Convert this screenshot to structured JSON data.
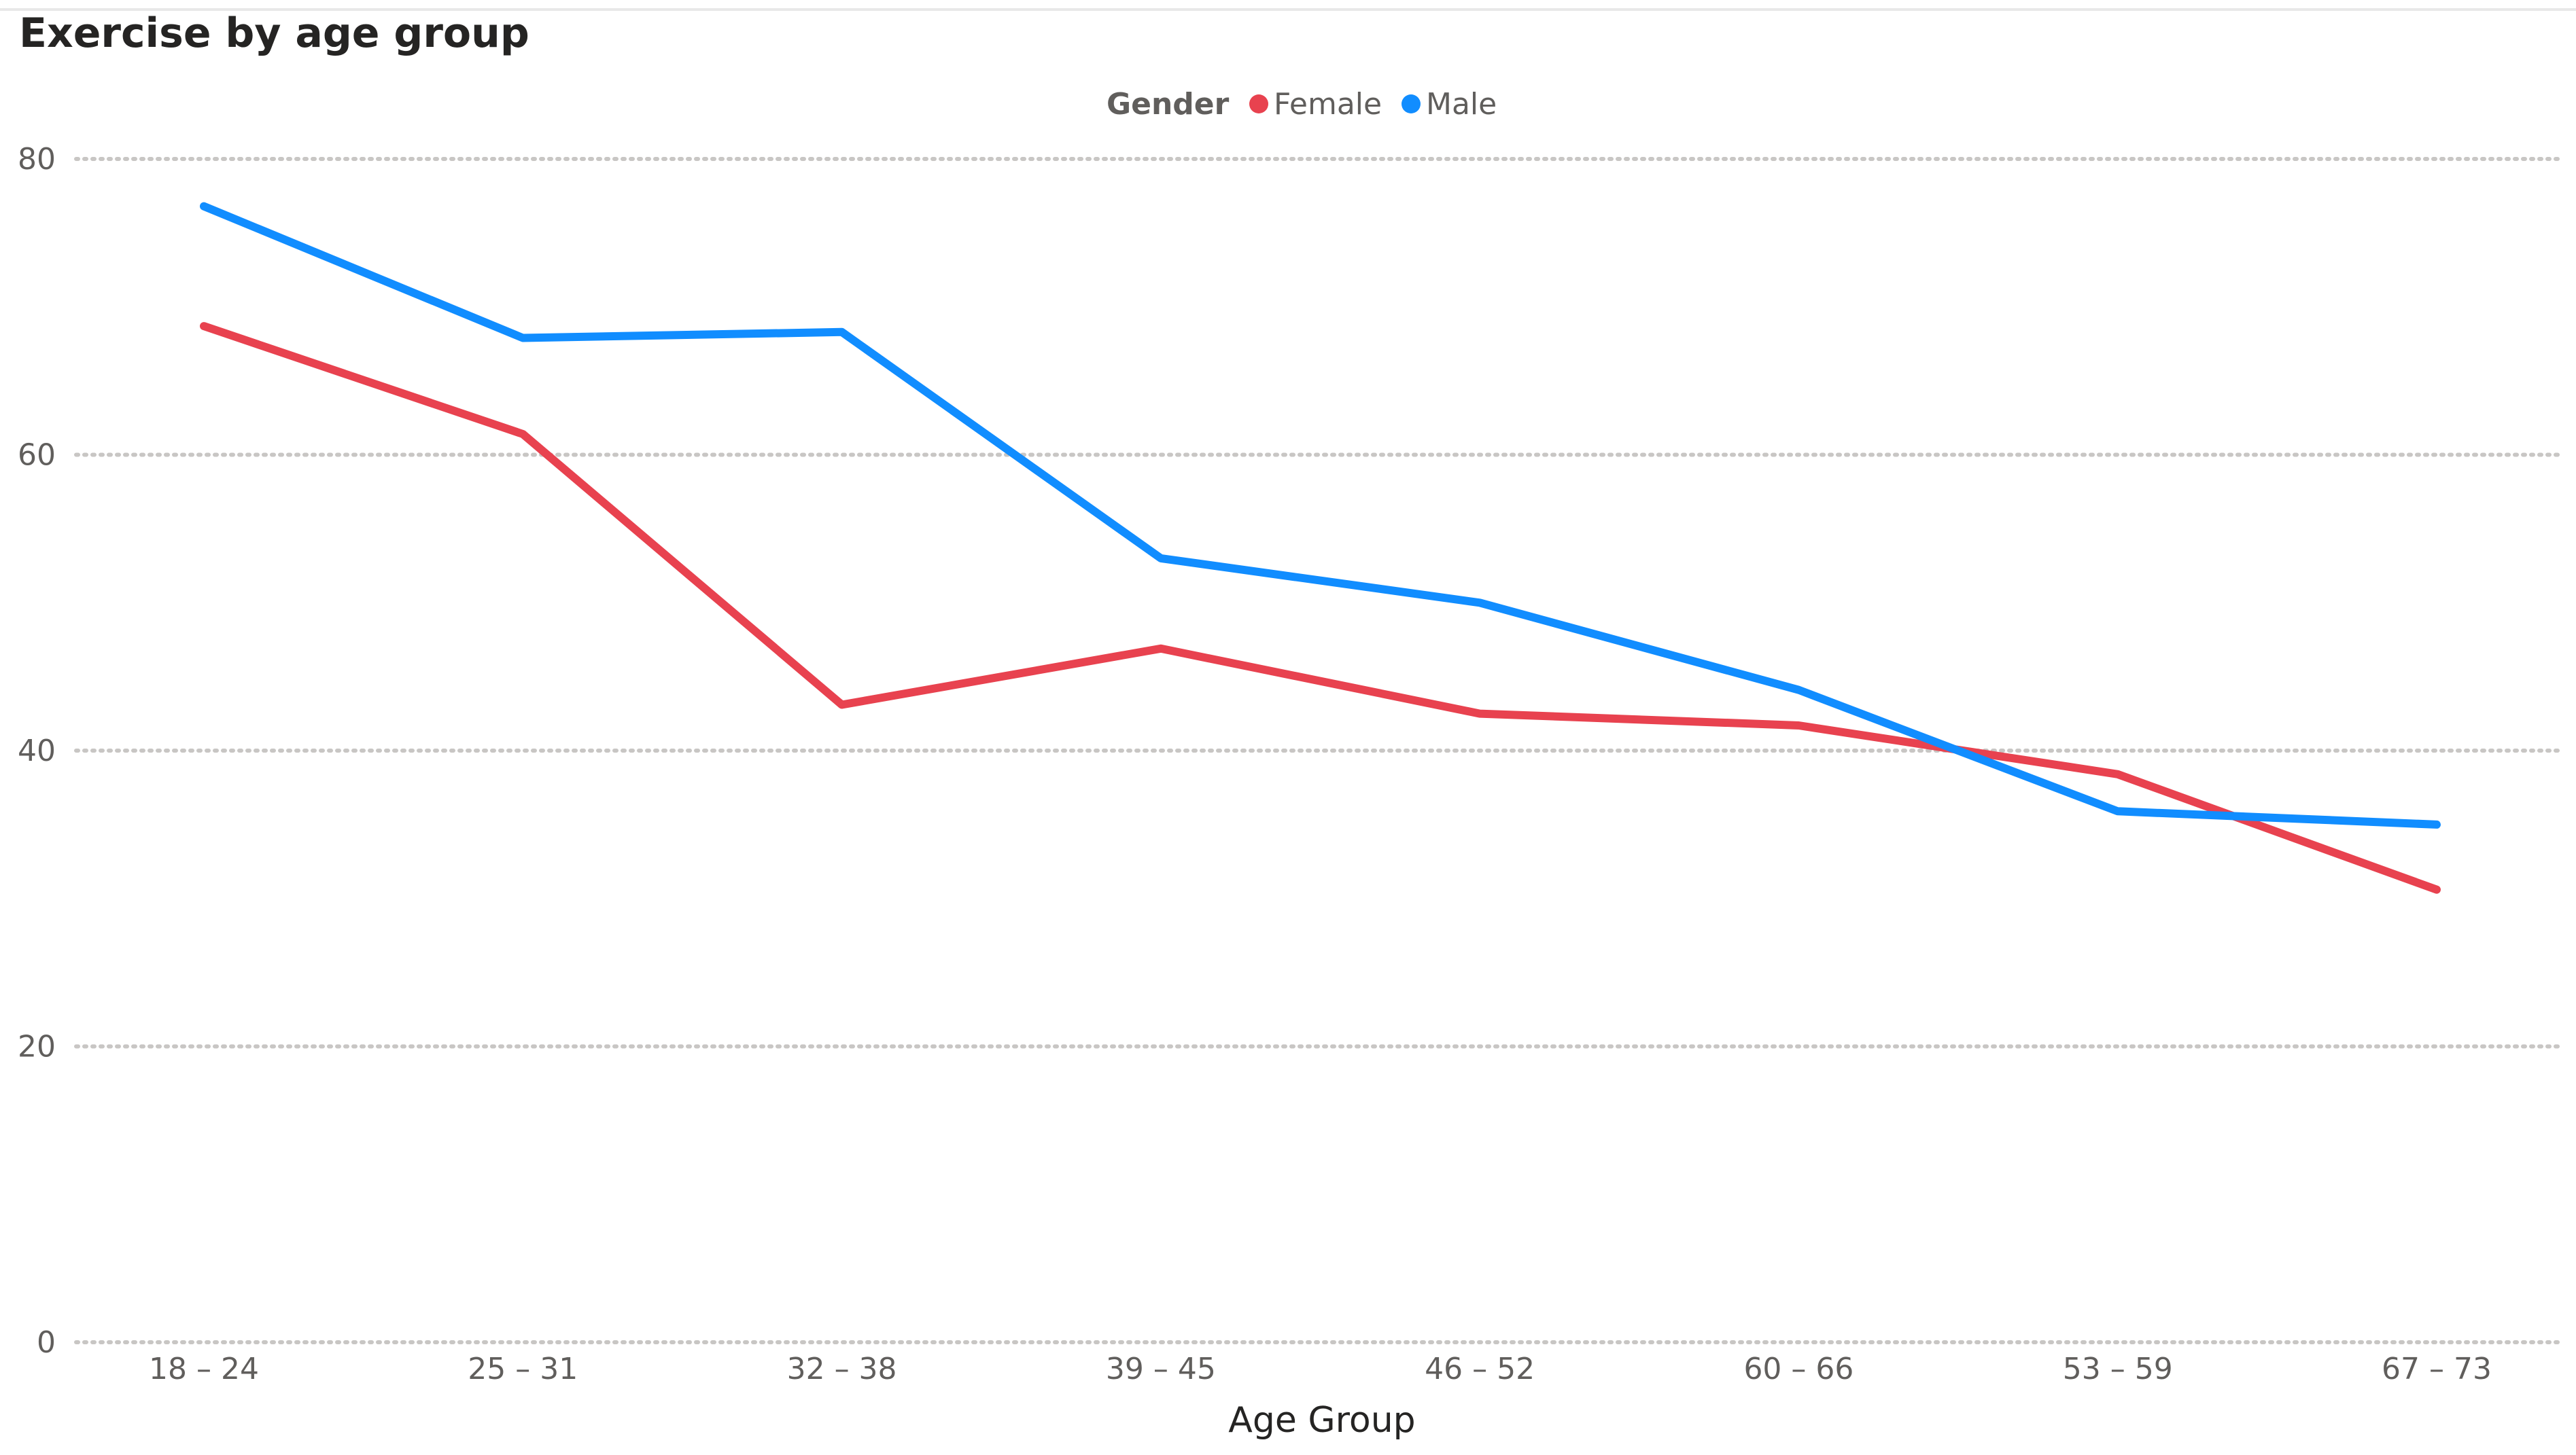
{
  "chart_data": {
    "type": "line",
    "title": "Exercise by age group",
    "xlabel": "Age Group",
    "ylabel": "",
    "ylim": [
      0,
      80
    ],
    "yticks": [
      0,
      20,
      40,
      60,
      80
    ],
    "grid": true,
    "legend": {
      "title": "Gender",
      "placement": "top-center"
    },
    "categories": [
      "18 – 24",
      "25 – 31",
      "32 – 38",
      "39 – 45",
      "46 – 52",
      "60 – 66",
      "53 – 59",
      "67 – 73"
    ],
    "series": [
      {
        "name": "Female",
        "color": "#e8424f",
        "values": [
          68.7,
          61.4,
          43.1,
          46.9,
          42.5,
          41.7,
          38.4,
          30.6
        ]
      },
      {
        "name": "Male",
        "color": "#118dff",
        "values": [
          76.8,
          67.9,
          68.3,
          53.0,
          50.0,
          44.1,
          35.9,
          35.0
        ]
      }
    ]
  }
}
